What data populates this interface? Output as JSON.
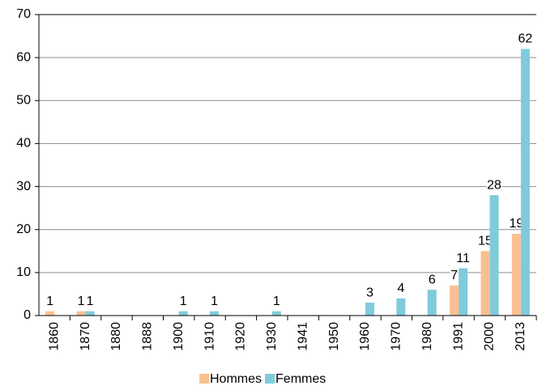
{
  "chart_data": {
    "type": "bar",
    "categories": [
      "1860",
      "1870",
      "1880",
      "1888",
      "1900",
      "1910",
      "1920",
      "1930",
      "1941",
      "1950",
      "1960",
      "1970",
      "1980",
      "1991",
      "2000",
      "2013"
    ],
    "series": [
      {
        "name": "Hommes",
        "color": "#fac090",
        "values": [
          1,
          1,
          0,
          0,
          0,
          0,
          0,
          0,
          0,
          0,
          0,
          0,
          0,
          7,
          15,
          19
        ]
      },
      {
        "name": "Femmes",
        "color": "#7fcbdc",
        "values": [
          0,
          1,
          0,
          0,
          1,
          1,
          0,
          1,
          0,
          0,
          3,
          4,
          6,
          11,
          28,
          62
        ]
      }
    ],
    "ylim": [
      0,
      70
    ],
    "yticks": [
      0,
      10,
      20,
      30,
      40,
      50,
      60,
      70
    ],
    "grid": true,
    "legend": "bottom"
  }
}
